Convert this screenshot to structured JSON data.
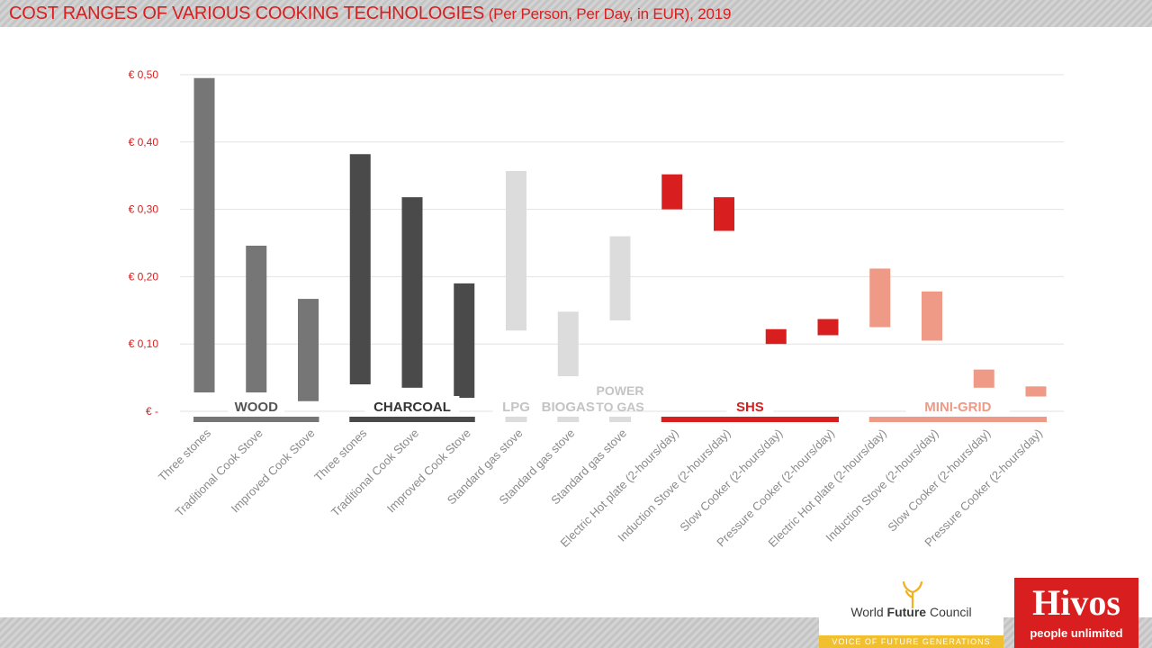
{
  "header": {
    "title_main": "COST RANGES OF VARIOUS COOKING TECHNOLOGIES",
    "title_sub": " (Per Person, Per Day, in EUR), 2019"
  },
  "chart_data": {
    "type": "bar",
    "subtype": "floating-range",
    "title": "COST RANGES OF VARIOUS COOKING TECHNOLOGIES (Per Person, Per Day, in EUR), 2019",
    "ylim": [
      0,
      0.5
    ],
    "ytick_labels": [
      "€ -",
      "€ 0,10",
      "€ 0,20",
      "€ 0,30",
      "€ 0,40",
      "€ 0,50"
    ],
    "ytick_values": [
      0,
      0.1,
      0.2,
      0.3,
      0.4,
      0.5
    ],
    "grid": true,
    "groups": [
      {
        "name": "WOOD",
        "color": "#767676",
        "label_color": "#555555",
        "span": [
          0,
          2
        ]
      },
      {
        "name": "CHARCOAL",
        "color": "#4a4a4a",
        "label_color": "#333333",
        "span": [
          3,
          5
        ]
      },
      {
        "name": "LPG",
        "color": "#dcdcdc",
        "label_color": "#c4c4c4",
        "span": [
          6,
          6
        ]
      },
      {
        "name": "BIOGAS",
        "color": "#dcdcdc",
        "label_color": "#c4c4c4",
        "span": [
          7,
          7
        ]
      },
      {
        "name": "POWER TO GAS",
        "color": "#dcdcdc",
        "label_color": "#c4c4c4",
        "span": [
          8,
          8
        ]
      },
      {
        "name": "SHS",
        "color": "#d81e1e",
        "label_color": "#d81e1e",
        "span": [
          9,
          12
        ]
      },
      {
        "name": "MINI-GRID",
        "color": "#ee9a86",
        "label_color": "#ee9a86",
        "span": [
          13,
          16
        ]
      }
    ],
    "categories": [
      "Three stones",
      "Traditional Cook Stove",
      "Improved Cook Stove",
      "Three stones",
      "Traditional Cook Stove",
      "Improved Cook Stove",
      "Standard gas stove",
      "Standard gas stove",
      "Standard gas stove",
      "Electric Hot plate (2-hours/day)",
      "Induction Stove (2-hours/day)",
      "Slow Cooker (2-hours/day)",
      "Pressure Cooker (2-hours/day)",
      "Electric Hot plate (2-hours/day)",
      "Induction Stove (2-hours/day)",
      "Slow Cooker (2-hours/day)",
      "Pressure Cooker (2-hours/day)"
    ],
    "ranges": [
      [
        0.028,
        0.495
      ],
      [
        0.028,
        0.246
      ],
      [
        0.015,
        0.167
      ],
      [
        0.04,
        0.382
      ],
      [
        0.035,
        0.318
      ],
      [
        0.02,
        0.19
      ],
      [
        0.12,
        0.357
      ],
      [
        0.052,
        0.148
      ],
      [
        0.135,
        0.26
      ],
      [
        0.3,
        0.352
      ],
      [
        0.268,
        0.318
      ],
      [
        0.1,
        0.122
      ],
      [
        0.113,
        0.137
      ],
      [
        0.125,
        0.212
      ],
      [
        0.105,
        0.178
      ],
      [
        0.035,
        0.062
      ],
      [
        0.022,
        0.037
      ]
    ]
  },
  "logos": {
    "wfc_prefix": "World ",
    "wfc_bold": "Future",
    "wfc_suffix": " Council",
    "wfc_tagline": "VOICE OF FUTURE GENERATIONS",
    "hivos_name": "Hivos",
    "hivos_tagline": "people unlimited"
  }
}
